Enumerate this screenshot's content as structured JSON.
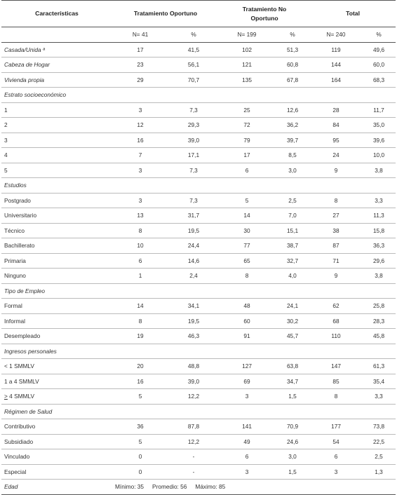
{
  "header": {
    "col_characteristics": "Características",
    "col_oportuno": "Tratamiento Oportuno",
    "col_no_oportuno_line1": "Tratamiento No",
    "col_no_oportuno_line2": "Oportuno",
    "col_total": "Total"
  },
  "n_row": {
    "oportuno_n": "N= 41",
    "oportuno_pct": "%",
    "no_oportuno_n": "N= 199",
    "no_oportuno_pct": "%",
    "total_n": "N= 240",
    "total_pct": "%"
  },
  "rows": [
    {
      "type": "data",
      "italic": true,
      "label": "Casada/Unida ª",
      "v": [
        "17",
        "41,5",
        "102",
        "51,3",
        "119",
        "49,6"
      ]
    },
    {
      "type": "data",
      "italic": true,
      "label": "Cabeza de Hogar",
      "v": [
        "23",
        "56,1",
        "121",
        "60,8",
        "144",
        "60,0"
      ]
    },
    {
      "type": "data",
      "italic": true,
      "label": "Vivienda propia",
      "v": [
        "29",
        "70,7",
        "135",
        "67,8",
        "164",
        "68,3"
      ]
    },
    {
      "type": "section",
      "label": "Estrato socioeconómico"
    },
    {
      "type": "data",
      "label": "1",
      "v": [
        "3",
        "7,3",
        "25",
        "12,6",
        "28",
        "11,7"
      ]
    },
    {
      "type": "data",
      "label": "2",
      "v": [
        "12",
        "29,3",
        "72",
        "36,2",
        "84",
        "35,0"
      ]
    },
    {
      "type": "data",
      "label": "3",
      "v": [
        "16",
        "39,0",
        "79",
        "39,7",
        "95",
        "39,6"
      ]
    },
    {
      "type": "data",
      "label": "4",
      "v": [
        "7",
        "17,1",
        "17",
        "8,5",
        "24",
        "10,0"
      ]
    },
    {
      "type": "data",
      "label": "5",
      "v": [
        "3",
        "7,3",
        "6",
        "3,0",
        "9",
        "3,8"
      ]
    },
    {
      "type": "section",
      "label": "Estudios"
    },
    {
      "type": "data",
      "label": "Postgrado",
      "v": [
        "3",
        "7,3",
        "5",
        "2,5",
        "8",
        "3,3"
      ]
    },
    {
      "type": "data",
      "label": "Universitario",
      "v": [
        "13",
        "31,7",
        "14",
        "7,0",
        "27",
        "11,3"
      ]
    },
    {
      "type": "data",
      "label": "Técnico",
      "v": [
        "8",
        "19,5",
        "30",
        "15,1",
        "38",
        "15,8"
      ]
    },
    {
      "type": "data",
      "label": "Bachillerato",
      "v": [
        "10",
        "24,4",
        "77",
        "38,7",
        "87",
        "36,3"
      ]
    },
    {
      "type": "data",
      "label": "Primaria",
      "v": [
        "6",
        "14,6",
        "65",
        "32,7",
        "71",
        "29,6"
      ]
    },
    {
      "type": "data",
      "label": "Ninguno",
      "v": [
        "1",
        "2,4",
        "8",
        "4,0",
        "9",
        "3,8"
      ]
    },
    {
      "type": "section",
      "label": "Tipo de Empleo"
    },
    {
      "type": "data",
      "label": "Formal",
      "v": [
        "14",
        "34,1",
        "48",
        "24,1",
        "62",
        "25,8"
      ]
    },
    {
      "type": "data",
      "label": "Informal",
      "v": [
        "8",
        "19,5",
        "60",
        "30,2",
        "68",
        "28,3"
      ]
    },
    {
      "type": "data",
      "label": "Desempleado",
      "v": [
        "19",
        "46,3",
        "91",
        "45,7",
        "110",
        "45,8"
      ]
    },
    {
      "type": "section",
      "label": "Ingresos personales"
    },
    {
      "type": "data",
      "label": "< 1 SMMLV",
      "v": [
        "20",
        "48,8",
        "127",
        "63,8",
        "147",
        "61,3"
      ]
    },
    {
      "type": "data",
      "label": "1 a 4 SMMLV",
      "v": [
        "16",
        "39,0",
        "69",
        "34,7",
        "85",
        "35,4"
      ]
    },
    {
      "type": "data",
      "label": "> 4 SMMLV",
      "underline": true,
      "v": [
        "5",
        "12,2",
        "3",
        "1,5",
        "8",
        "3,3"
      ]
    },
    {
      "type": "section",
      "label": "Régimen de Salud"
    },
    {
      "type": "data",
      "label": "Contributivo",
      "v": [
        "36",
        "87,8",
        "141",
        "70,9",
        "177",
        "73,8"
      ]
    },
    {
      "type": "data",
      "label": "Subsidiado",
      "v": [
        "5",
        "12,2",
        "49",
        "24,6",
        "54",
        "22,5"
      ]
    },
    {
      "type": "data",
      "label": "Vinculado",
      "v": [
        "0",
        "-",
        "6",
        "3,0",
        "6",
        "2,5"
      ]
    },
    {
      "type": "data",
      "label": "Especial",
      "v": [
        "0",
        "-",
        "3",
        "1,5",
        "3",
        "1,3"
      ]
    }
  ],
  "edad": {
    "label": "Edad",
    "minimo": "Mínimo: 35",
    "promedio": "Promedio: 56",
    "maximo": "Máximo: 85"
  }
}
